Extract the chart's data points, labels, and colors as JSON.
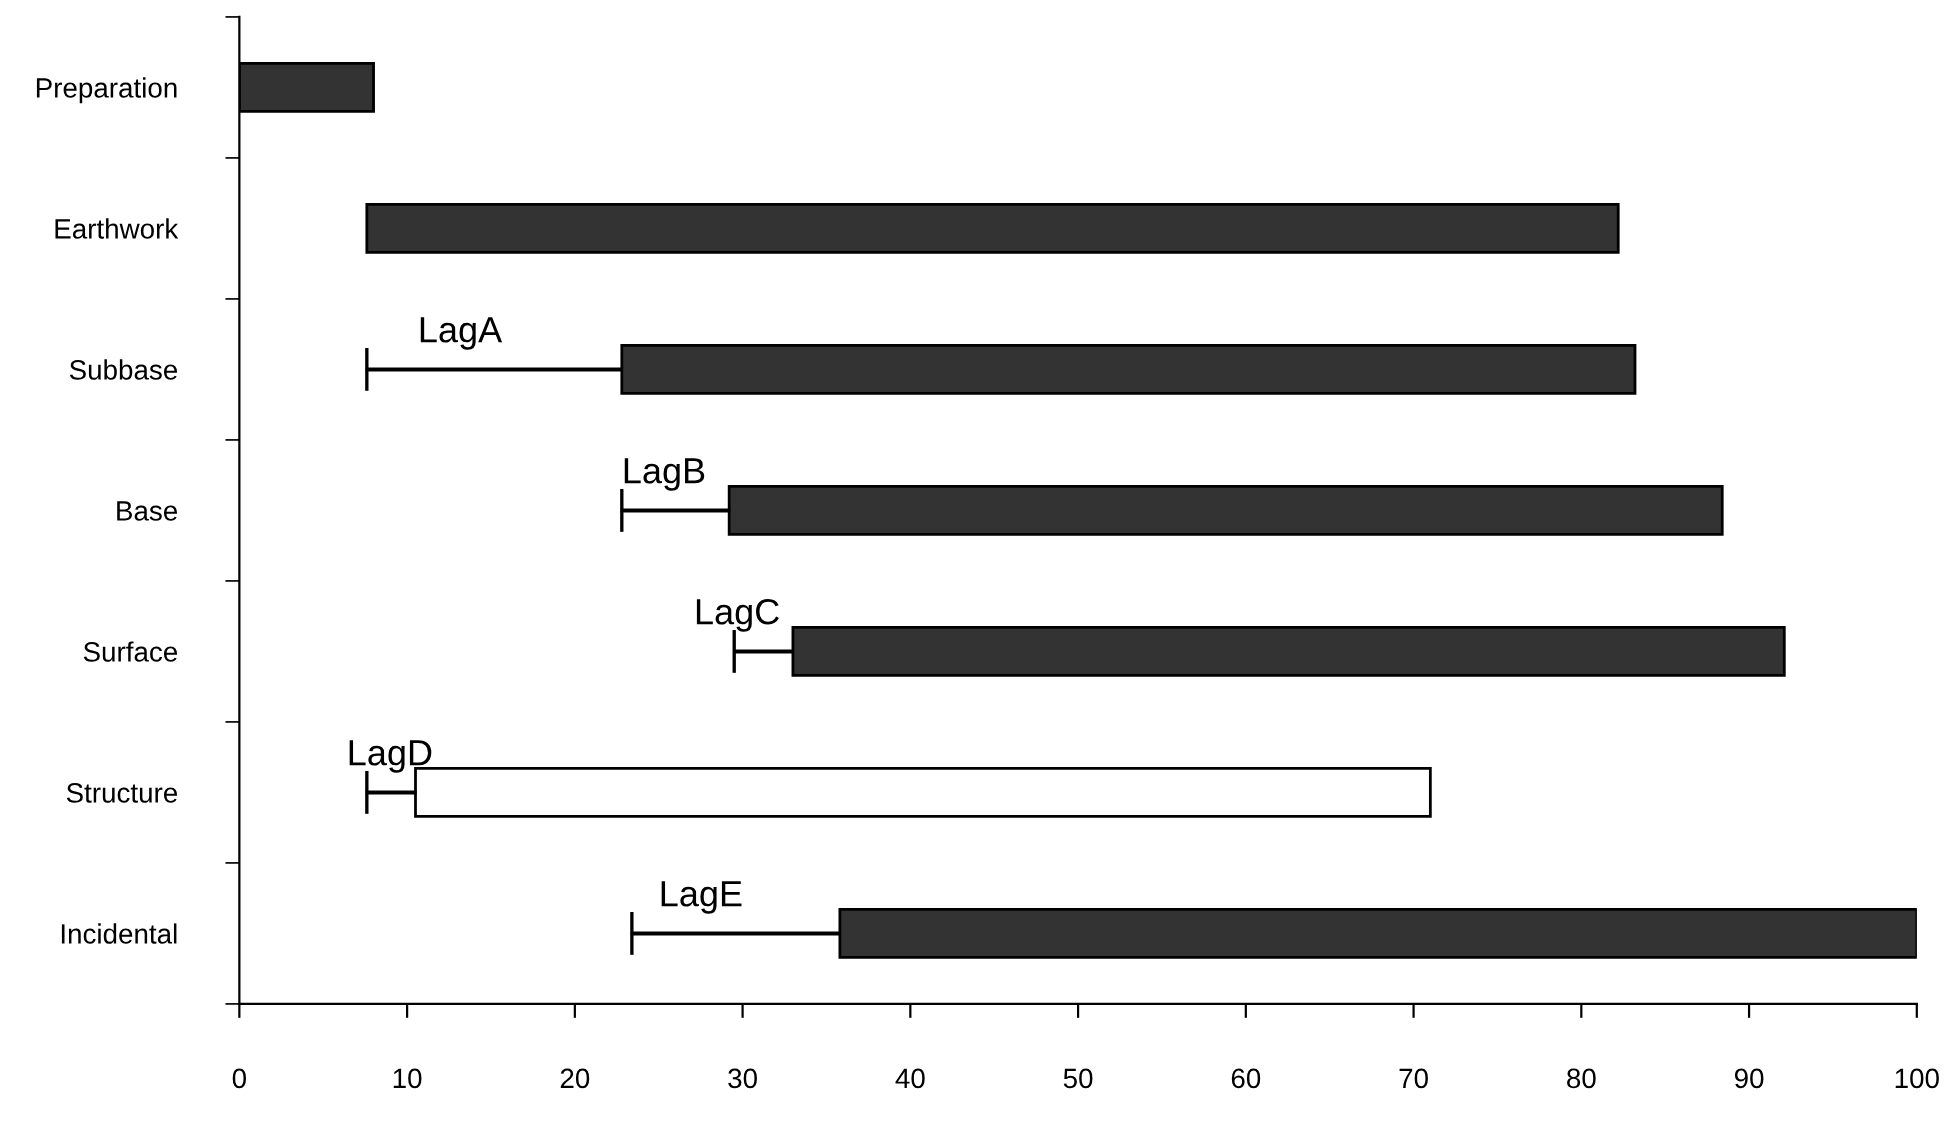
{
  "chart_data": {
    "type": "bar",
    "orientation": "horizontal",
    "categories": [
      "Preparation",
      "Earthwork",
      "Subbase",
      "Base",
      "Surface",
      "Structure",
      "Incidental"
    ],
    "series": [
      {
        "color": "#333333",
        "colors": [
          "#333333",
          "#333333",
          "#333333",
          "#333333",
          "#333333",
          "#ffffff",
          "#333333"
        ],
        "base": [
          0,
          7.6,
          22.8,
          29.2,
          33.0,
          10.5,
          35.8
        ],
        "values": [
          8.0,
          74.6,
          60.4,
          59.2,
          59.1,
          60.5,
          64.2
        ]
      },
      {
        "type": "bar",
        "line_style": "solid",
        "color": "#000000",
        "base": [
          null,
          null,
          7.6,
          22.8,
          29.5,
          7.6,
          23.4
        ],
        "values": [
          null,
          null,
          15.2,
          6.4,
          3.5,
          2.9,
          12.4
        ]
      }
    ],
    "annotations": [
      "LagA",
      "LagB",
      "LagC",
      "LagD",
      "LagE"
    ],
    "xlim": [
      0,
      100
    ],
    "xticks": [
      0,
      10,
      20,
      30,
      40,
      50,
      60,
      70,
      80,
      90,
      100
    ],
    "grid": false,
    "legend": false
  }
}
